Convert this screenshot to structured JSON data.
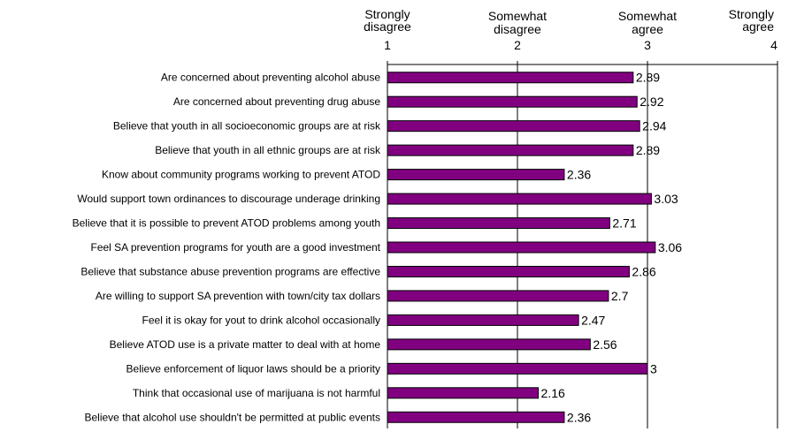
{
  "chart_data": {
    "type": "bar",
    "orientation": "horizontal",
    "xlim": [
      1,
      4
    ],
    "x_ticks": [
      {
        "value": 1,
        "label_top": "Strongly",
        "label_mid": "disagree",
        "label_num": "1"
      },
      {
        "value": 2,
        "label_top": "Somewhat",
        "label_mid": "disagree",
        "label_num": "2"
      },
      {
        "value": 3,
        "label_top": "Somewhat",
        "label_mid": "agree",
        "label_num": "3"
      },
      {
        "value": 4,
        "label_top": "Strongly",
        "label_mid": "agree",
        "label_num": "4"
      }
    ],
    "categories": [
      "Are concerned about preventing alcohol abuse",
      "Are concerned about preventing drug abuse",
      "Believe that youth in all socioeconomic groups are at risk",
      "Believe that youth in all ethnic groups are at risk",
      "Know about community programs working to prevent ATOD",
      "Would support town ordinances to discourage underage drinking",
      "Believe that it is possible to prevent ATOD problems among youth",
      "Feel SA prevention programs for youth are a good investment",
      "Believe that substance abuse prevention programs are effective",
      "Are willing to support SA prevention with town/city tax dollars",
      "Feel it is okay for yout to drink alcohol occasionally",
      "Believe ATOD use is a private matter to deal with at home",
      "Believe enforcement of liquor laws should be a priority",
      "Think that occasional use of marijuana is not harmful",
      "Believe that alcohol use shouldn't be permitted at public events"
    ],
    "values": [
      2.89,
      2.92,
      2.94,
      2.89,
      2.36,
      3.03,
      2.71,
      3.06,
      2.86,
      2.7,
      2.47,
      2.56,
      3,
      2.16,
      2.36
    ],
    "value_labels": [
      "2.89",
      "2.92",
      "2.94",
      "2.89",
      "2.36",
      "3.03",
      "2.71",
      "3.06",
      "2.86",
      "2.7",
      "2.47",
      "2.56",
      "3",
      "2.16",
      "2.36"
    ],
    "grid": true,
    "colors": {
      "bar": "#800080",
      "bar_edge": "#000000",
      "axis": "#000000"
    }
  }
}
